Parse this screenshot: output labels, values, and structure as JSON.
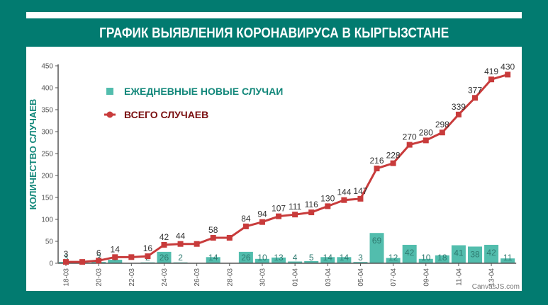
{
  "header": {
    "title": "ГРАФИК ВЫЯВЛЕНИЯ КОРОНАВИРУСА В КЫРГЫЗСТАНЕ"
  },
  "colors": {
    "background": "#027b70",
    "bar": "#52bdad",
    "line": "#c83b3b",
    "legend_daily": "#12877a",
    "legend_total": "#7a0f10"
  },
  "chart_data": {
    "type": "bar+line",
    "title": "ГРАФИК ВЫЯВЛЕНИЯ КОРОНАВИРУСА В КЫРГЫЗСТАНЕ",
    "xlabel": "",
    "ylabel": "КОЛИЧЕСТВО СЛУЧАЕВ",
    "ylim": [
      0,
      450
    ],
    "yticks": [
      0,
      50,
      100,
      150,
      200,
      250,
      300,
      350,
      400,
      450
    ],
    "grid": false,
    "legend_position": "top-left inside",
    "x": [
      "18-03",
      "19-03",
      "20-03",
      "21-03",
      "22-03",
      "23-03",
      "24-03",
      "25-03",
      "26-03",
      "27-03",
      "28-03",
      "29-03",
      "30-03",
      "31-03",
      "01-04",
      "02-04",
      "03-04",
      "04-04",
      "05-04",
      "06-04",
      "07-04",
      "08-04",
      "09-04",
      "10-04",
      "11-04",
      "12-04",
      "13-04",
      "14-04"
    ],
    "xtick_labels": [
      "18-03",
      "20-03",
      "22-03",
      "24-03",
      "26-03",
      "28-03",
      "30-03",
      "01-04",
      "03-04",
      "05-04",
      "07-04",
      "09-04",
      "11-04",
      "13-04"
    ],
    "series": [
      {
        "name": "ЕЖЕДНЕВНЫЕ НОВЫЕ СЛУЧАИ",
        "type": "bar",
        "color": "#52bdad",
        "values": [
          3,
          0,
          3,
          8,
          0,
          2,
          26,
          2,
          0,
          14,
          0,
          26,
          10,
          13,
          4,
          5,
          14,
          14,
          3,
          69,
          12,
          42,
          10,
          18,
          41,
          38,
          42,
          11
        ]
      },
      {
        "name": "ВСЕГО СЛУЧАЕВ",
        "type": "line",
        "color": "#c83b3b",
        "values": [
          3,
          3,
          6,
          14,
          14,
          16,
          42,
          44,
          44,
          58,
          58,
          84,
          94,
          107,
          111,
          116,
          130,
          144,
          147,
          216,
          228,
          270,
          280,
          298,
          339,
          377,
          419,
          430
        ],
        "labels_shown": [
          true,
          false,
          true,
          true,
          false,
          true,
          true,
          true,
          false,
          true,
          false,
          true,
          true,
          true,
          true,
          true,
          true,
          true,
          true,
          true,
          true,
          true,
          true,
          true,
          true,
          true,
          true,
          true
        ]
      }
    ],
    "watermark": "CanvasJS.com"
  }
}
